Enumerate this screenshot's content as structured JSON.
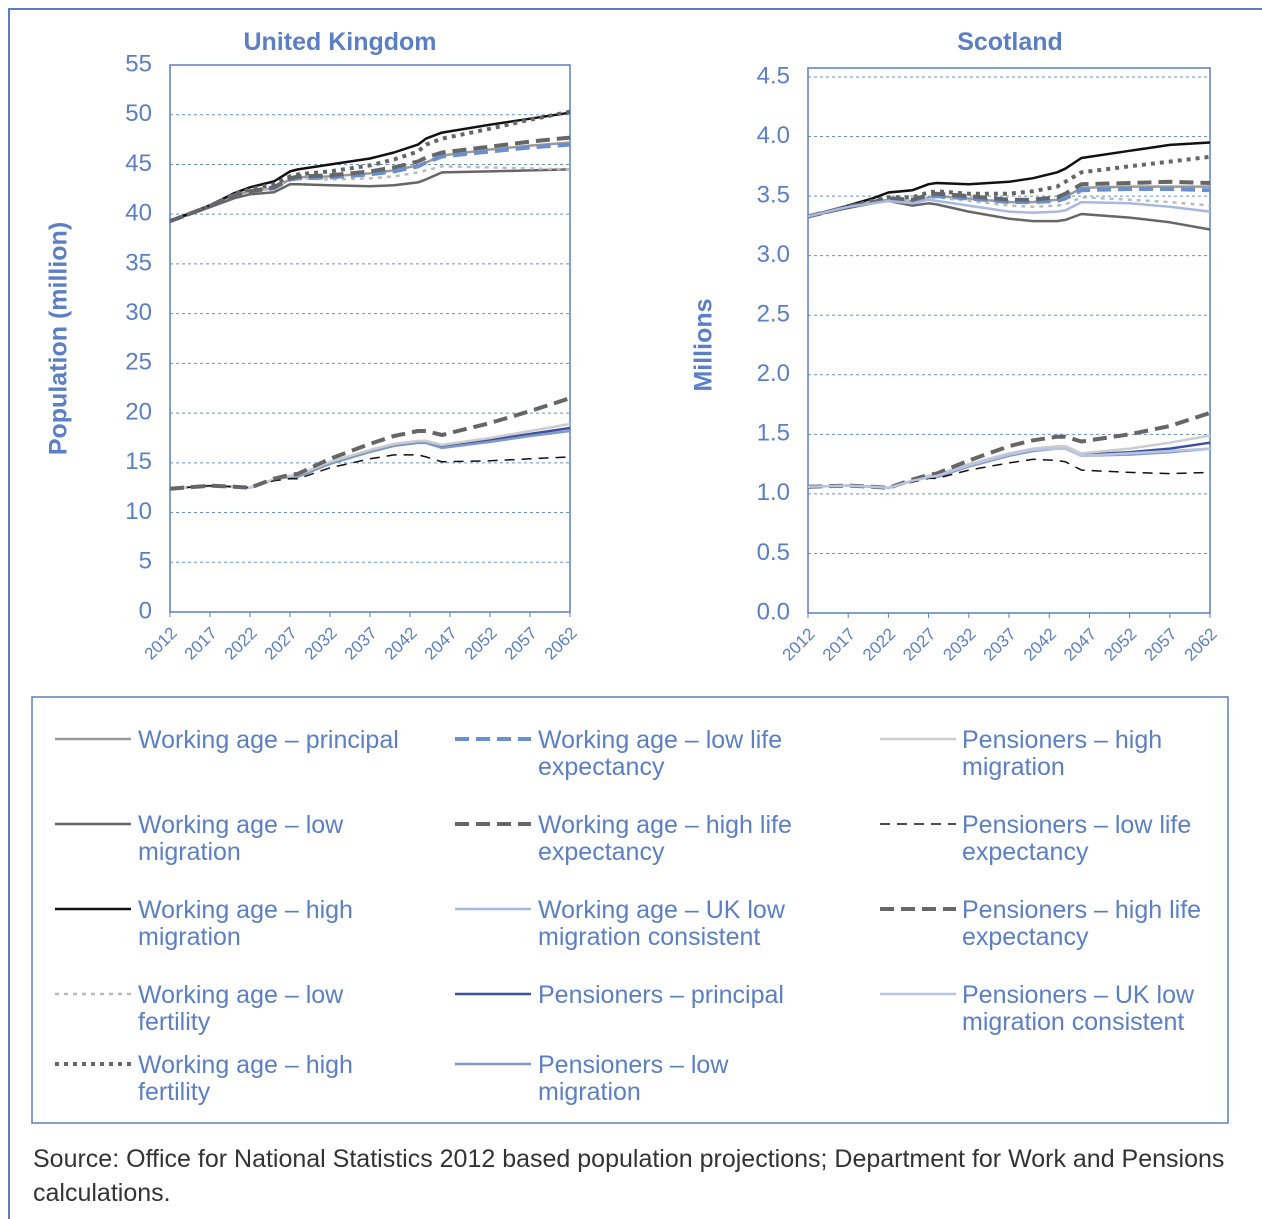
{
  "chart_data": [
    {
      "type": "line",
      "title": "United Kingdom",
      "y_label": "Population (million)",
      "x": [
        2012,
        2017,
        2020,
        2022,
        2025,
        2027,
        2028,
        2032,
        2037,
        2040,
        2043,
        2044,
        2046,
        2052,
        2057,
        2062
      ],
      "xlim": [
        2012,
        2062
      ],
      "xticks": [
        2012,
        2017,
        2022,
        2027,
        2032,
        2037,
        2042,
        2047,
        2052,
        2057,
        2062
      ],
      "ylim": [
        0,
        55
      ],
      "yticks": [
        0,
        5,
        10,
        15,
        20,
        25,
        30,
        35,
        40,
        45,
        50,
        55
      ],
      "grid": true,
      "series": [
        {
          "name": "Working age – principal",
          "color": "#9a9a9a",
          "dash": "solid",
          "width": 2.5,
          "values": [
            39.3,
            40.8,
            41.9,
            42.3,
            42.6,
            43.5,
            43.7,
            43.8,
            44.1,
            44.4,
            44.9,
            45.2,
            45.9,
            46.5,
            46.9,
            47.2
          ]
        },
        {
          "name": "Working age – low migration",
          "color": "#666666",
          "dash": "solid",
          "width": 2.5,
          "values": [
            39.3,
            40.7,
            41.6,
            42.0,
            42.2,
            43.0,
            43.0,
            42.9,
            42.8,
            42.9,
            43.2,
            43.5,
            44.2,
            44.3,
            44.4,
            44.5
          ]
        },
        {
          "name": "Working age – high migration",
          "color": "#111111",
          "dash": "solid",
          "width": 2.5,
          "values": [
            39.3,
            40.9,
            42.1,
            42.7,
            43.3,
            44.3,
            44.5,
            45.0,
            45.6,
            46.2,
            47.0,
            47.6,
            48.2,
            49.0,
            49.6,
            50.2
          ]
        },
        {
          "name": "Working age – low fertility",
          "color": "#bbbbbb",
          "dash": "dotted",
          "width": 2.5,
          "values": [
            39.3,
            40.8,
            41.9,
            42.3,
            42.6,
            43.5,
            43.6,
            43.5,
            43.6,
            43.8,
            44.2,
            44.4,
            44.8,
            44.7,
            44.6,
            44.5
          ]
        },
        {
          "name": "Working age – high fertility",
          "color": "#666666",
          "dash": "dotted",
          "width": 4,
          "values": [
            39.3,
            40.8,
            42.0,
            42.5,
            43.0,
            43.8,
            44.0,
            44.3,
            44.9,
            45.5,
            46.3,
            47.0,
            47.6,
            48.6,
            49.5,
            50.3
          ]
        },
        {
          "name": "Working age – low life expectancy",
          "color": "#6a8fd0",
          "dash": "dashed",
          "width": 4,
          "values": [
            39.3,
            40.8,
            41.9,
            42.3,
            42.6,
            43.5,
            43.6,
            43.7,
            44.0,
            44.3,
            44.8,
            45.2,
            45.8,
            46.3,
            46.7,
            47.0
          ]
        },
        {
          "name": "Working age – high life expectancy",
          "color": "#666666",
          "dash": "dashed",
          "width": 4,
          "values": [
            39.3,
            40.8,
            41.9,
            42.3,
            42.7,
            43.6,
            43.8,
            43.9,
            44.3,
            44.7,
            45.3,
            45.7,
            46.2,
            46.8,
            47.3,
            47.7
          ]
        },
        {
          "name": "Working age – UK low migration consistent",
          "color": "#a8b8e0",
          "dash": "solid",
          "width": 2.5,
          "values": [
            null,
            null,
            null,
            null,
            null,
            null,
            null,
            null,
            null,
            null,
            null,
            null,
            null,
            null,
            null,
            null
          ]
        },
        {
          "name": "Pensioners – principal",
          "color": "#3d4fa0",
          "dash": "solid",
          "width": 2.5,
          "values": [
            12.4,
            12.7,
            12.6,
            12.5,
            13.3,
            13.7,
            13.7,
            15.0,
            16.2,
            16.8,
            17.1,
            17.1,
            16.6,
            17.3,
            17.9,
            18.5
          ]
        },
        {
          "name": "Pensioners – low migration",
          "color": "#7f99c8",
          "dash": "solid",
          "width": 2.5,
          "values": [
            12.4,
            12.7,
            12.6,
            12.5,
            13.3,
            13.6,
            13.6,
            14.9,
            16.1,
            16.7,
            17.0,
            17.0,
            16.5,
            17.1,
            17.7,
            18.2
          ]
        },
        {
          "name": "Pensioners – high migration",
          "color": "#cccccc",
          "dash": "solid",
          "width": 2.5,
          "values": [
            12.4,
            12.7,
            12.6,
            12.5,
            13.3,
            13.7,
            13.8,
            15.1,
            16.3,
            16.9,
            17.2,
            17.2,
            16.8,
            17.5,
            18.2,
            18.9
          ]
        },
        {
          "name": "Pensioners – low life expectancy",
          "color": "#111111",
          "dash": "thin-dashed",
          "width": 1.5,
          "values": [
            12.4,
            12.7,
            12.6,
            12.5,
            13.2,
            13.4,
            13.4,
            14.5,
            15.4,
            15.8,
            15.8,
            15.6,
            15.1,
            15.2,
            15.4,
            15.6
          ]
        },
        {
          "name": "Pensioners – high life expectancy",
          "color": "#666666",
          "dash": "dashed",
          "width": 4,
          "values": [
            12.4,
            12.7,
            12.6,
            12.5,
            13.4,
            13.8,
            13.9,
            15.4,
            16.9,
            17.7,
            18.2,
            18.2,
            17.8,
            19.0,
            20.2,
            21.5
          ]
        },
        {
          "name": "Pensioners – UK low migration consistent",
          "color": "#b8c4e2",
          "dash": "solid",
          "width": 2.5,
          "values": [
            null,
            null,
            null,
            null,
            null,
            null,
            null,
            null,
            null,
            null,
            null,
            null,
            null,
            null,
            null,
            null
          ]
        }
      ]
    },
    {
      "type": "line",
      "title": "Scotland",
      "y_label": "Millions",
      "x": [
        2012,
        2017,
        2020,
        2022,
        2025,
        2027,
        2028,
        2032,
        2037,
        2040,
        2043,
        2044,
        2046,
        2052,
        2057,
        2062
      ],
      "xlim": [
        2012,
        2062
      ],
      "xticks": [
        2012,
        2017,
        2022,
        2027,
        2032,
        2037,
        2042,
        2047,
        2052,
        2057,
        2062
      ],
      "ylim": [
        0,
        4.5
      ],
      "yticks": [
        {
          "value": 0,
          "label": "0.0"
        },
        0.5,
        {
          "value": 1,
          "label": "1.0"
        },
        1.5,
        {
          "value": 2,
          "label": "2.0"
        },
        2.5,
        {
          "value": 3,
          "label": "3.0"
        },
        3.5,
        {
          "value": 4,
          "label": "4.0"
        },
        4.5
      ],
      "grid": true,
      "series": [
        {
          "color": "#9a9a9a",
          "dash": "solid",
          "width": 2.5,
          "values": [
            3.33,
            3.41,
            3.45,
            3.47,
            3.46,
            3.49,
            3.5,
            3.48,
            3.45,
            3.45,
            3.47,
            3.49,
            3.57,
            3.58,
            3.58,
            3.58
          ]
        },
        {
          "color": "#666666",
          "dash": "solid",
          "width": 2.5,
          "values": [
            3.33,
            3.4,
            3.44,
            3.46,
            3.42,
            3.44,
            3.43,
            3.37,
            3.31,
            3.29,
            3.29,
            3.3,
            3.35,
            3.32,
            3.28,
            3.22
          ]
        },
        {
          "color": "#111111",
          "dash": "solid",
          "width": 2.5,
          "values": [
            3.33,
            3.42,
            3.48,
            3.53,
            3.55,
            3.6,
            3.61,
            3.6,
            3.62,
            3.65,
            3.7,
            3.73,
            3.82,
            3.88,
            3.93,
            3.95
          ]
        },
        {
          "color": "#bbbbbb",
          "dash": "dotted",
          "width": 2.5,
          "values": [
            3.33,
            3.41,
            3.45,
            3.47,
            3.46,
            3.49,
            3.49,
            3.46,
            3.42,
            3.41,
            3.42,
            3.43,
            3.49,
            3.47,
            3.45,
            3.42
          ]
        },
        {
          "color": "#666666",
          "dash": "dotted",
          "width": 4,
          "values": [
            3.33,
            3.41,
            3.46,
            3.49,
            3.49,
            3.53,
            3.54,
            3.52,
            3.52,
            3.54,
            3.58,
            3.62,
            3.7,
            3.75,
            3.79,
            3.83
          ]
        },
        {
          "color": "#6a8fd0",
          "dash": "dashed",
          "width": 4,
          "values": [
            3.33,
            3.41,
            3.45,
            3.47,
            3.46,
            3.49,
            3.5,
            3.48,
            3.45,
            3.45,
            3.46,
            3.48,
            3.55,
            3.56,
            3.56,
            3.55
          ]
        },
        {
          "color": "#666666",
          "dash": "dashed",
          "width": 4,
          "values": [
            3.33,
            3.41,
            3.45,
            3.48,
            3.47,
            3.51,
            3.52,
            3.5,
            3.47,
            3.47,
            3.49,
            3.52,
            3.6,
            3.61,
            3.62,
            3.61
          ]
        },
        {
          "color": "#a8b8e0",
          "dash": "solid",
          "width": 2.5,
          "values": [
            3.33,
            3.41,
            3.44,
            3.46,
            3.44,
            3.47,
            3.46,
            3.42,
            3.37,
            3.36,
            3.37,
            3.38,
            3.45,
            3.44,
            3.41,
            3.37
          ]
        },
        {
          "color": "#3d4fa0",
          "dash": "solid",
          "width": 2.5,
          "values": [
            1.06,
            1.07,
            1.06,
            1.05,
            1.11,
            1.15,
            1.15,
            1.24,
            1.33,
            1.37,
            1.39,
            1.39,
            1.33,
            1.35,
            1.38,
            1.43
          ]
        },
        {
          "color": "#7f99c8",
          "dash": "solid",
          "width": 2.5,
          "values": [
            1.06,
            1.07,
            1.06,
            1.05,
            1.11,
            1.14,
            1.14,
            1.23,
            1.32,
            1.36,
            1.38,
            1.38,
            1.32,
            1.33,
            1.35,
            1.38
          ]
        },
        {
          "color": "#cccccc",
          "dash": "solid",
          "width": 2.5,
          "values": [
            1.06,
            1.07,
            1.06,
            1.05,
            1.11,
            1.15,
            1.16,
            1.25,
            1.34,
            1.38,
            1.4,
            1.4,
            1.34,
            1.38,
            1.43,
            1.49
          ]
        },
        {
          "color": "#111111",
          "dash": "thin-dashed",
          "width": 1.5,
          "values": [
            1.06,
            1.07,
            1.06,
            1.05,
            1.1,
            1.13,
            1.13,
            1.2,
            1.26,
            1.29,
            1.28,
            1.27,
            1.2,
            1.18,
            1.17,
            1.18
          ]
        },
        {
          "color": "#666666",
          "dash": "dashed",
          "width": 4,
          "values": [
            1.06,
            1.07,
            1.06,
            1.05,
            1.12,
            1.16,
            1.17,
            1.28,
            1.4,
            1.45,
            1.48,
            1.48,
            1.44,
            1.5,
            1.57,
            1.68
          ]
        },
        {
          "color": "#b8c4e2",
          "dash": "solid",
          "width": 2.5,
          "values": [
            1.06,
            1.07,
            1.06,
            1.05,
            1.11,
            1.14,
            1.15,
            1.24,
            1.33,
            1.37,
            1.38,
            1.38,
            1.32,
            1.34,
            1.36,
            1.38
          ]
        }
      ]
    }
  ],
  "source": "Source: Office for National Statistics 2012 based population projections; Department for Work and Pensions calculations."
}
